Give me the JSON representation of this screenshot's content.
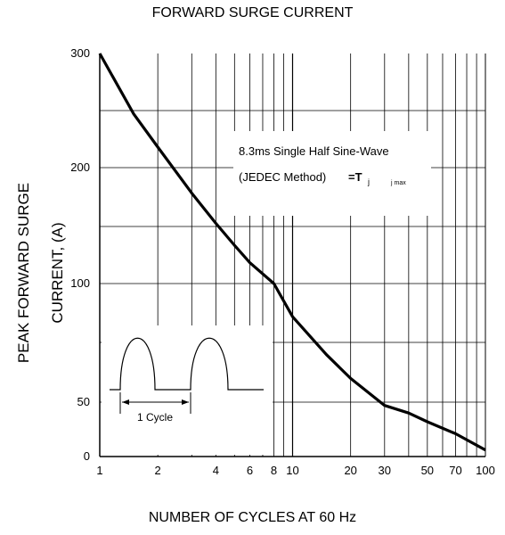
{
  "chart_data": {
    "type": "line",
    "title": "FORWARD SURGE CURRENT",
    "xlabel": "NUMBER OF CYCLES AT 60 Hz",
    "ylabel_line1": "PEAK FORWARD SURGE",
    "ylabel_line2": "CURRENT, (A)",
    "x_scale": "log",
    "xlim": [
      1,
      100
    ],
    "ylim": [
      0,
      300
    ],
    "x_tick_labels": [
      "1",
      "2",
      "4",
      "6",
      "8",
      "10",
      "20",
      "30",
      "50",
      "70",
      "100"
    ],
    "y_tick_labels": [
      "300",
      "200",
      "100",
      "50",
      "0"
    ],
    "grid": true,
    "series": [
      {
        "x": [
          1,
          1.5,
          2,
          3,
          4,
          5,
          6,
          8,
          10,
          15,
          20,
          30,
          40,
          50,
          70,
          100
        ],
        "y": [
          300,
          247,
          218,
          178,
          152,
          133,
          118,
          100,
          86,
          70,
          60,
          47,
          40,
          32,
          21,
          6
        ]
      }
    ],
    "annotations": {
      "note_line1": "8.3ms Single Half Sine-Wave",
      "note_line2": "(JEDEC Method)",
      "note_eq": "=T",
      "note_sub1": "j",
      "note_sub2": "j max",
      "inset_label": "1 Cycle"
    }
  }
}
